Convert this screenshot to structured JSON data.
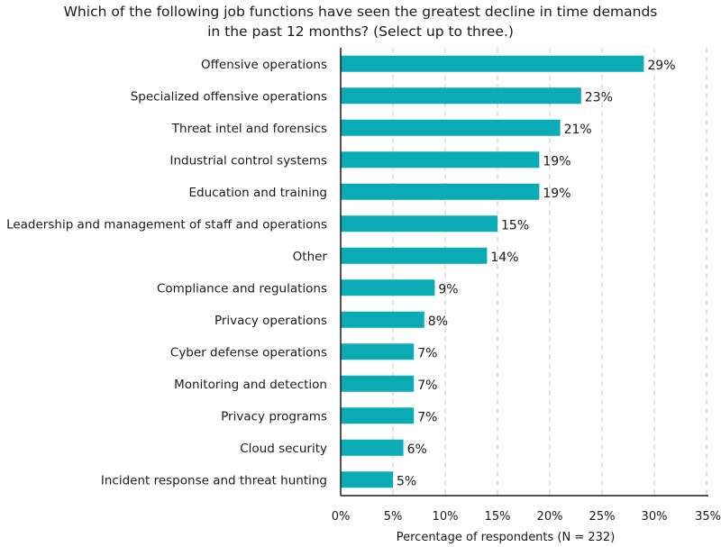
{
  "chart_data": {
    "type": "bar",
    "orientation": "horizontal",
    "title_line1": "Which of the following job functions have seen the greatest decline in time demands",
    "title_line2": "in the past 12 months? (Select up to three.)",
    "xlabel": "Percentage of respondents (N = 232)",
    "ylabel": "",
    "categories": [
      "Offensive operations",
      "Specialized offensive operations",
      "Threat intel and forensics",
      "Industrial control systems",
      "Education and training",
      "Leadership and management of staff and operations",
      "Other",
      "Compliance and regulations",
      "Privacy operations",
      "Cyber defense operations",
      "Monitoring and detection",
      "Privacy programs",
      "Cloud security",
      "Incident response and threat hunting"
    ],
    "values": [
      29,
      23,
      21,
      19,
      19,
      15,
      14,
      9,
      8,
      7,
      7,
      7,
      6,
      5
    ],
    "value_labels": [
      "29%",
      "23%",
      "21%",
      "19%",
      "19%",
      "15%",
      "14%",
      "9%",
      "8%",
      "7%",
      "7%",
      "7%",
      "6%",
      "5%"
    ],
    "xlim": [
      0,
      35
    ],
    "xticks": [
      0,
      5,
      10,
      15,
      20,
      25,
      30,
      35
    ],
    "xtick_labels": [
      "0%",
      "5%",
      "10%",
      "15%",
      "20%",
      "25%",
      "30%",
      "35%"
    ],
    "grid": "vertical-dashed",
    "bar_color": "#0aabb4"
  }
}
